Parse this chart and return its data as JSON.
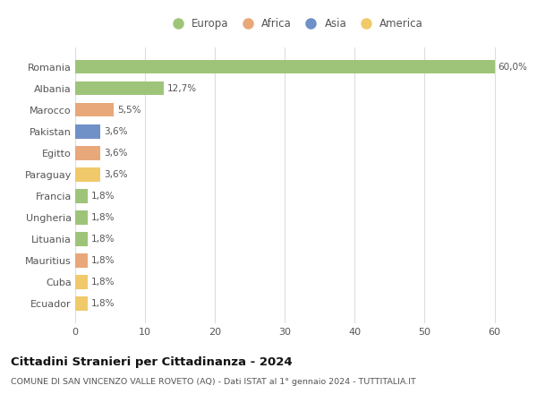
{
  "categories": [
    "Ecuador",
    "Cuba",
    "Mauritius",
    "Lituania",
    "Ungheria",
    "Francia",
    "Paraguay",
    "Egitto",
    "Pakistan",
    "Marocco",
    "Albania",
    "Romania"
  ],
  "values": [
    1.8,
    1.8,
    1.8,
    1.8,
    1.8,
    1.8,
    3.6,
    3.6,
    3.6,
    5.5,
    12.7,
    60.0
  ],
  "labels": [
    "1,8%",
    "1,8%",
    "1,8%",
    "1,8%",
    "1,8%",
    "1,8%",
    "3,6%",
    "3,6%",
    "3,6%",
    "5,5%",
    "12,7%",
    "60,0%"
  ],
  "colors": [
    "#f0c96a",
    "#f0c96a",
    "#e8a87a",
    "#9ec47a",
    "#9ec47a",
    "#9ec47a",
    "#f0c96a",
    "#e8a87a",
    "#7090c8",
    "#e8a87a",
    "#9ec47a",
    "#9ec47a"
  ],
  "legend_labels": [
    "Europa",
    "Africa",
    "Asia",
    "America"
  ],
  "legend_colors": [
    "#9ec47a",
    "#e8a87a",
    "#7090c8",
    "#f0c96a"
  ],
  "xlim": [
    0,
    63
  ],
  "xticks": [
    0,
    10,
    20,
    30,
    40,
    50,
    60
  ],
  "title": "Cittadini Stranieri per Cittadinanza - 2024",
  "subtitle": "COMUNE DI SAN VINCENZO VALLE ROVETO (AQ) - Dati ISTAT al 1° gennaio 2024 - TUTTITALIA.IT",
  "bg_color": "#ffffff",
  "grid_color": "#dddddd",
  "bar_height": 0.65
}
